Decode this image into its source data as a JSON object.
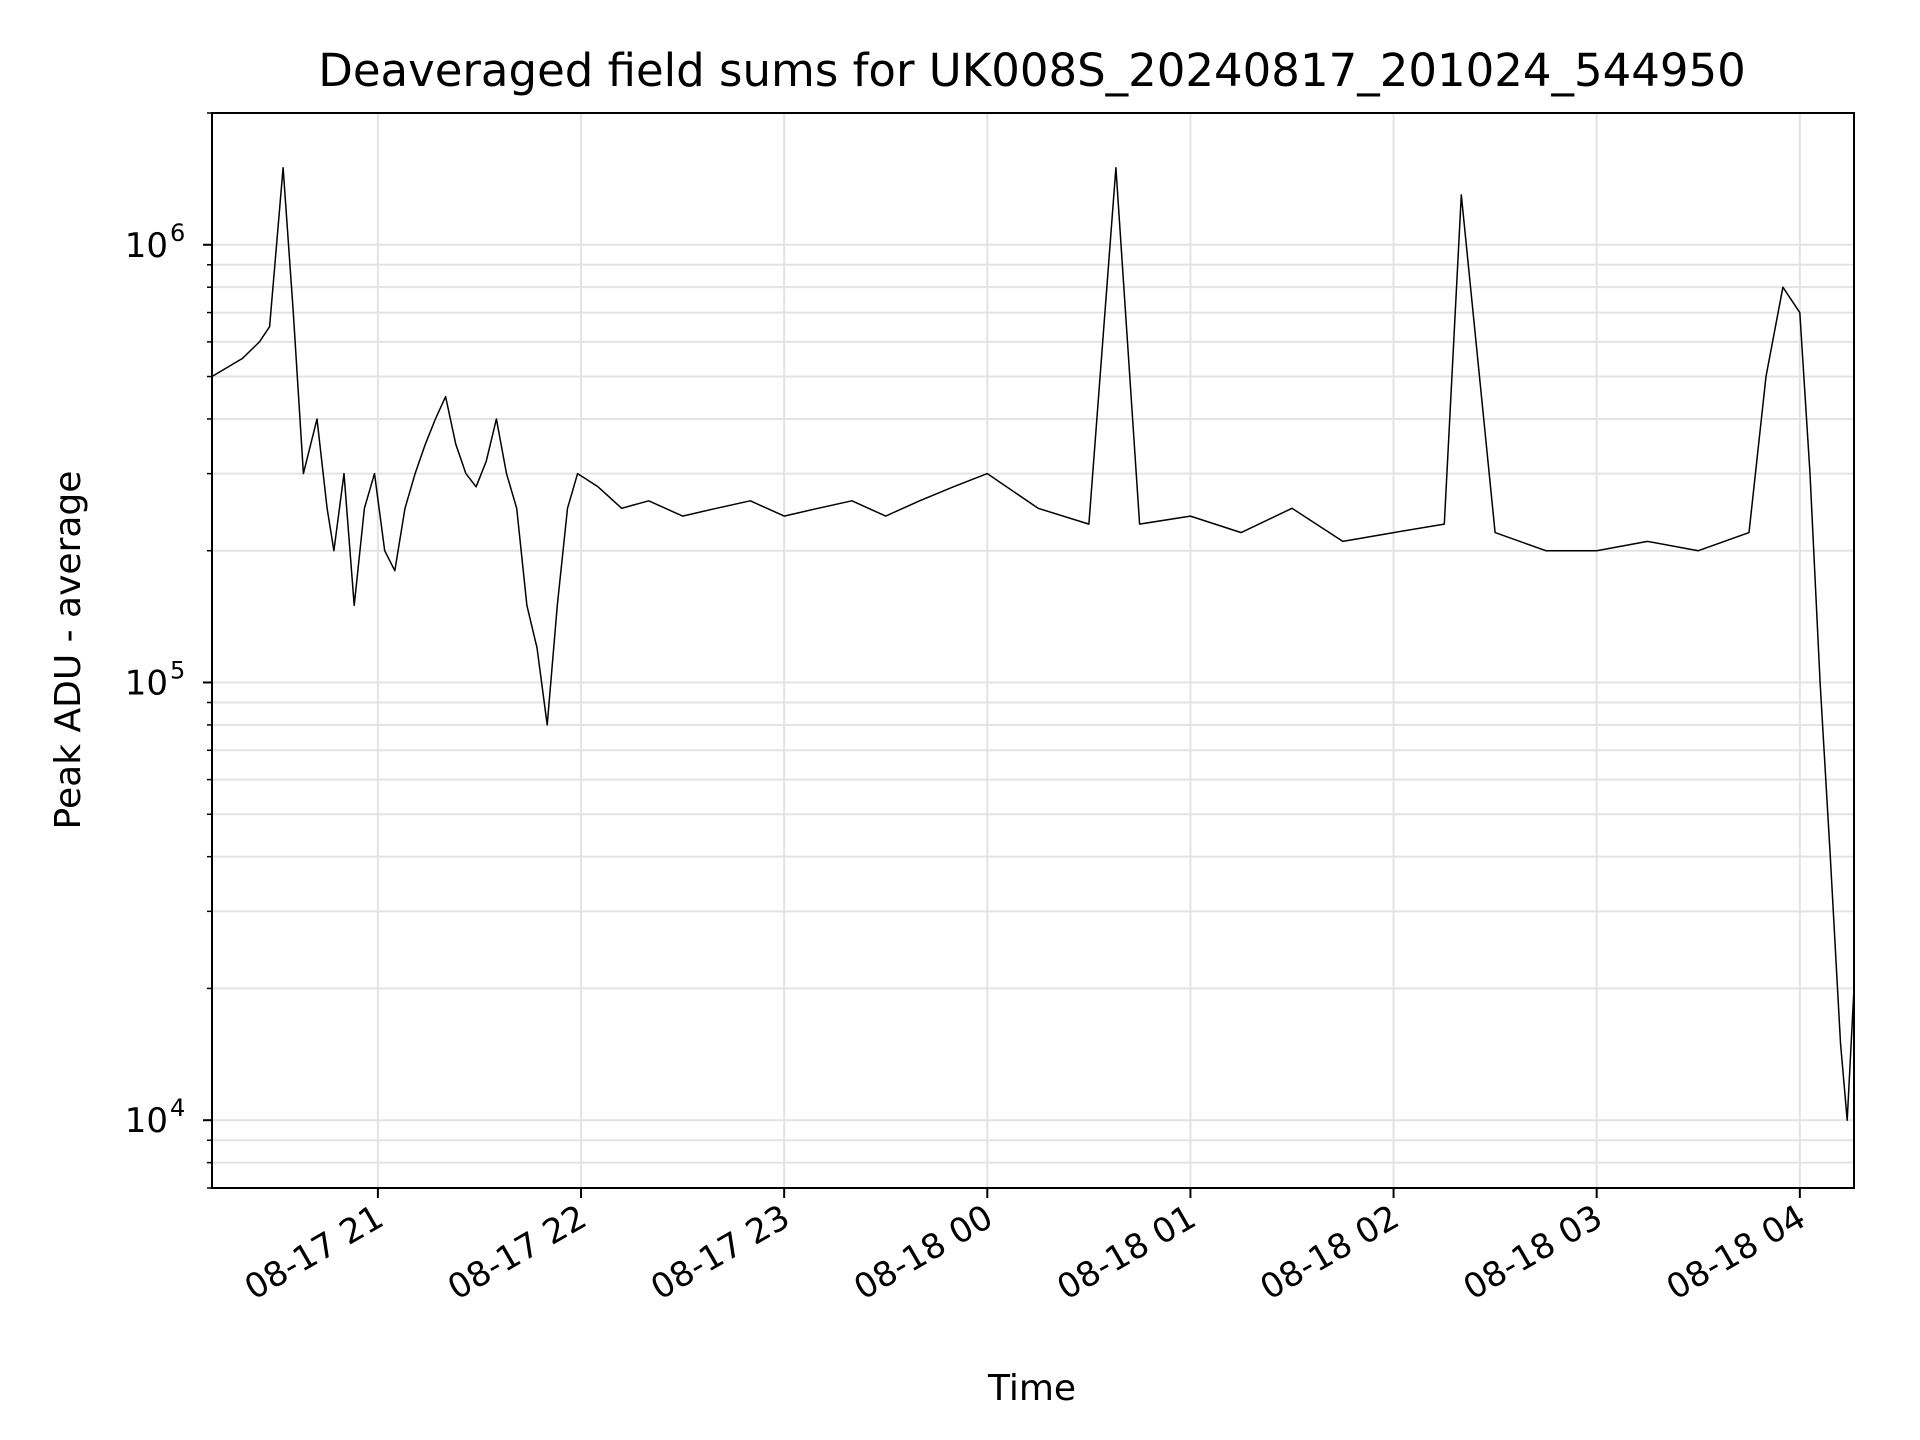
{
  "chart_data": {
    "type": "line",
    "title": "Deaveraged field sums for UK008S_20240817_201024_544950",
    "xlabel": "Time",
    "ylabel": "Peak ADU - average",
    "yscale": "log",
    "ylim": [
      7000,
      2000000
    ],
    "xlim": [
      "2024-08-17 20:11",
      "2024-08-18 04:16"
    ],
    "grid": true,
    "line_color": "#000000",
    "x_ticks": [
      {
        "value": "2024-08-17 21:00",
        "label": "08-17 21"
      },
      {
        "value": "2024-08-17 22:00",
        "label": "08-17 22"
      },
      {
        "value": "2024-08-17 23:00",
        "label": "08-17 23"
      },
      {
        "value": "2024-08-18 00:00",
        "label": "08-18 00"
      },
      {
        "value": "2024-08-18 01:00",
        "label": "08-18 01"
      },
      {
        "value": "2024-08-18 02:00",
        "label": "08-18 02"
      },
      {
        "value": "2024-08-18 03:00",
        "label": "08-18 03"
      },
      {
        "value": "2024-08-18 04:00",
        "label": "08-18 04"
      }
    ],
    "y_ticks": [
      {
        "value": 10000,
        "base": "10",
        "exp": "4"
      },
      {
        "value": 100000,
        "base": "10",
        "exp": "5"
      },
      {
        "value": 1000000,
        "base": "10",
        "exp": "6"
      }
    ],
    "series": [
      {
        "x": [
          "2024-08-17 20:11",
          "2024-08-17 20:20",
          "2024-08-17 20:25",
          "2024-08-17 20:28",
          "2024-08-17 20:32",
          "2024-08-17 20:35",
          "2024-08-17 20:38",
          "2024-08-17 20:42",
          "2024-08-17 20:45",
          "2024-08-17 20:47",
          "2024-08-17 20:50",
          "2024-08-17 20:53",
          "2024-08-17 20:56",
          "2024-08-17 20:59",
          "2024-08-17 21:02",
          "2024-08-17 21:05",
          "2024-08-17 21:08",
          "2024-08-17 21:11",
          "2024-08-17 21:14",
          "2024-08-17 21:17",
          "2024-08-17 21:20",
          "2024-08-17 21:23",
          "2024-08-17 21:26",
          "2024-08-17 21:29",
          "2024-08-17 21:32",
          "2024-08-17 21:35",
          "2024-08-17 21:38",
          "2024-08-17 21:41",
          "2024-08-17 21:44",
          "2024-08-17 21:47",
          "2024-08-17 21:50",
          "2024-08-17 21:53",
          "2024-08-17 21:56",
          "2024-08-17 21:59",
          "2024-08-17 22:05",
          "2024-08-17 22:12",
          "2024-08-17 22:20",
          "2024-08-17 22:30",
          "2024-08-17 22:40",
          "2024-08-17 22:50",
          "2024-08-17 23:00",
          "2024-08-17 23:10",
          "2024-08-17 23:20",
          "2024-08-17 23:30",
          "2024-08-17 23:40",
          "2024-08-17 23:50",
          "2024-08-18 00:00",
          "2024-08-18 00:15",
          "2024-08-18 00:30",
          "2024-08-18 00:38",
          "2024-08-18 00:45",
          "2024-08-18 01:00",
          "2024-08-18 01:15",
          "2024-08-18 01:30",
          "2024-08-18 01:45",
          "2024-08-18 02:00",
          "2024-08-18 02:15",
          "2024-08-18 02:20",
          "2024-08-18 02:30",
          "2024-08-18 02:45",
          "2024-08-18 03:00",
          "2024-08-18 03:15",
          "2024-08-18 03:30",
          "2024-08-18 03:45",
          "2024-08-18 03:50",
          "2024-08-18 03:55",
          "2024-08-18 04:00",
          "2024-08-18 04:03",
          "2024-08-18 04:06",
          "2024-08-18 04:09",
          "2024-08-18 04:12",
          "2024-08-18 04:14",
          "2024-08-18 04:16"
        ],
        "y": [
          500000,
          550000,
          600000,
          650000,
          1500000,
          700000,
          300000,
          400000,
          250000,
          200000,
          300000,
          150000,
          250000,
          300000,
          200000,
          180000,
          250000,
          300000,
          350000,
          400000,
          450000,
          350000,
          300000,
          280000,
          320000,
          400000,
          300000,
          250000,
          150000,
          120000,
          80000,
          150000,
          250000,
          300000,
          280000,
          250000,
          260000,
          240000,
          250000,
          260000,
          240000,
          250000,
          260000,
          240000,
          260000,
          280000,
          300000,
          250000,
          230000,
          1500000,
          230000,
          240000,
          220000,
          250000,
          210000,
          220000,
          230000,
          1300000,
          220000,
          200000,
          200000,
          210000,
          200000,
          220000,
          500000,
          800000,
          700000,
          300000,
          100000,
          40000,
          15000,
          10000,
          20000
        ]
      }
    ]
  }
}
